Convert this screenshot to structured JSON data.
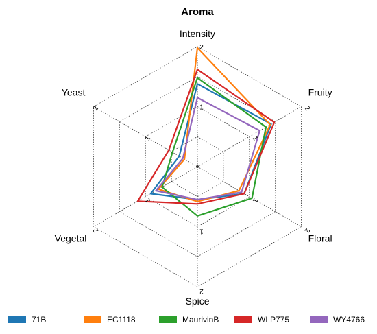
{
  "chart_data": {
    "type": "radar",
    "title": "Aroma",
    "axes": [
      "Intensity",
      "Fruity",
      "Floral",
      "Spice",
      "Vegetal",
      "Yeast"
    ],
    "range": [
      0,
      2
    ],
    "ticks": [
      1,
      2
    ],
    "grid": true,
    "legend_position": "bottom",
    "series": [
      {
        "name": "71B",
        "color": "#1f77b4",
        "values": [
          1.38,
          1.42,
          0.9,
          0.55,
          0.9,
          0.35
        ]
      },
      {
        "name": "EC1118",
        "color": "#ff7f0e",
        "values": [
          1.98,
          1.4,
          0.8,
          0.58,
          0.75,
          0.25
        ]
      },
      {
        "name": "MaurivinB",
        "color": "#2ca02c",
        "values": [
          1.48,
          1.32,
          1.05,
          0.82,
          0.68,
          0.48
        ]
      },
      {
        "name": "WLP775",
        "color": "#d62728",
        "values": [
          1.62,
          1.48,
          0.9,
          0.62,
          1.15,
          0.55
        ]
      },
      {
        "name": "WY4766",
        "color": "#9467bd",
        "values": [
          1.15,
          1.2,
          0.85,
          0.55,
          0.8,
          0.28
        ]
      }
    ]
  }
}
